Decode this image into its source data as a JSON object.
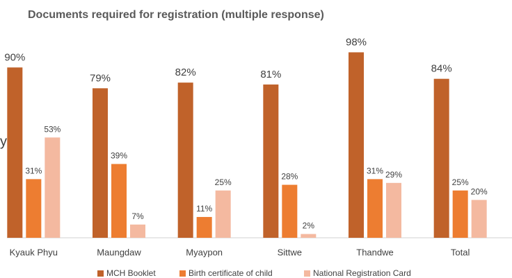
{
  "chart_data": {
    "type": "bar",
    "title": "Documents required for registration  (multiple response)",
    "annotations": [
      "y"
    ],
    "categories": [
      "Kyauk Phyu",
      "Maungdaw",
      "Myaypon",
      "Sittwe",
      "Thandwe",
      "Total"
    ],
    "series": [
      {
        "name": "MCH Booklet",
        "color": "#c0622a",
        "values": [
          90,
          79,
          82,
          81,
          98,
          84
        ],
        "value_labels": [
          "90%",
          "79%",
          "82%",
          "81%",
          "98%",
          "84%"
        ]
      },
      {
        "name": "Birth certificate of child",
        "color": "#ed7d31",
        "values": [
          31,
          39,
          11,
          28,
          31,
          25
        ],
        "value_labels": [
          "31%",
          "39%",
          "11%",
          "28%",
          "31%",
          "25%"
        ]
      },
      {
        "name": "National Registration Card",
        "color": "#f4b9a0",
        "values": [
          53,
          7,
          25,
          2,
          29,
          20
        ],
        "value_labels": [
          "53%",
          "7%",
          "25%",
          "2%",
          "29%",
          "20%"
        ]
      }
    ],
    "ylim": [
      0,
      100
    ],
    "legend": "bottom"
  }
}
